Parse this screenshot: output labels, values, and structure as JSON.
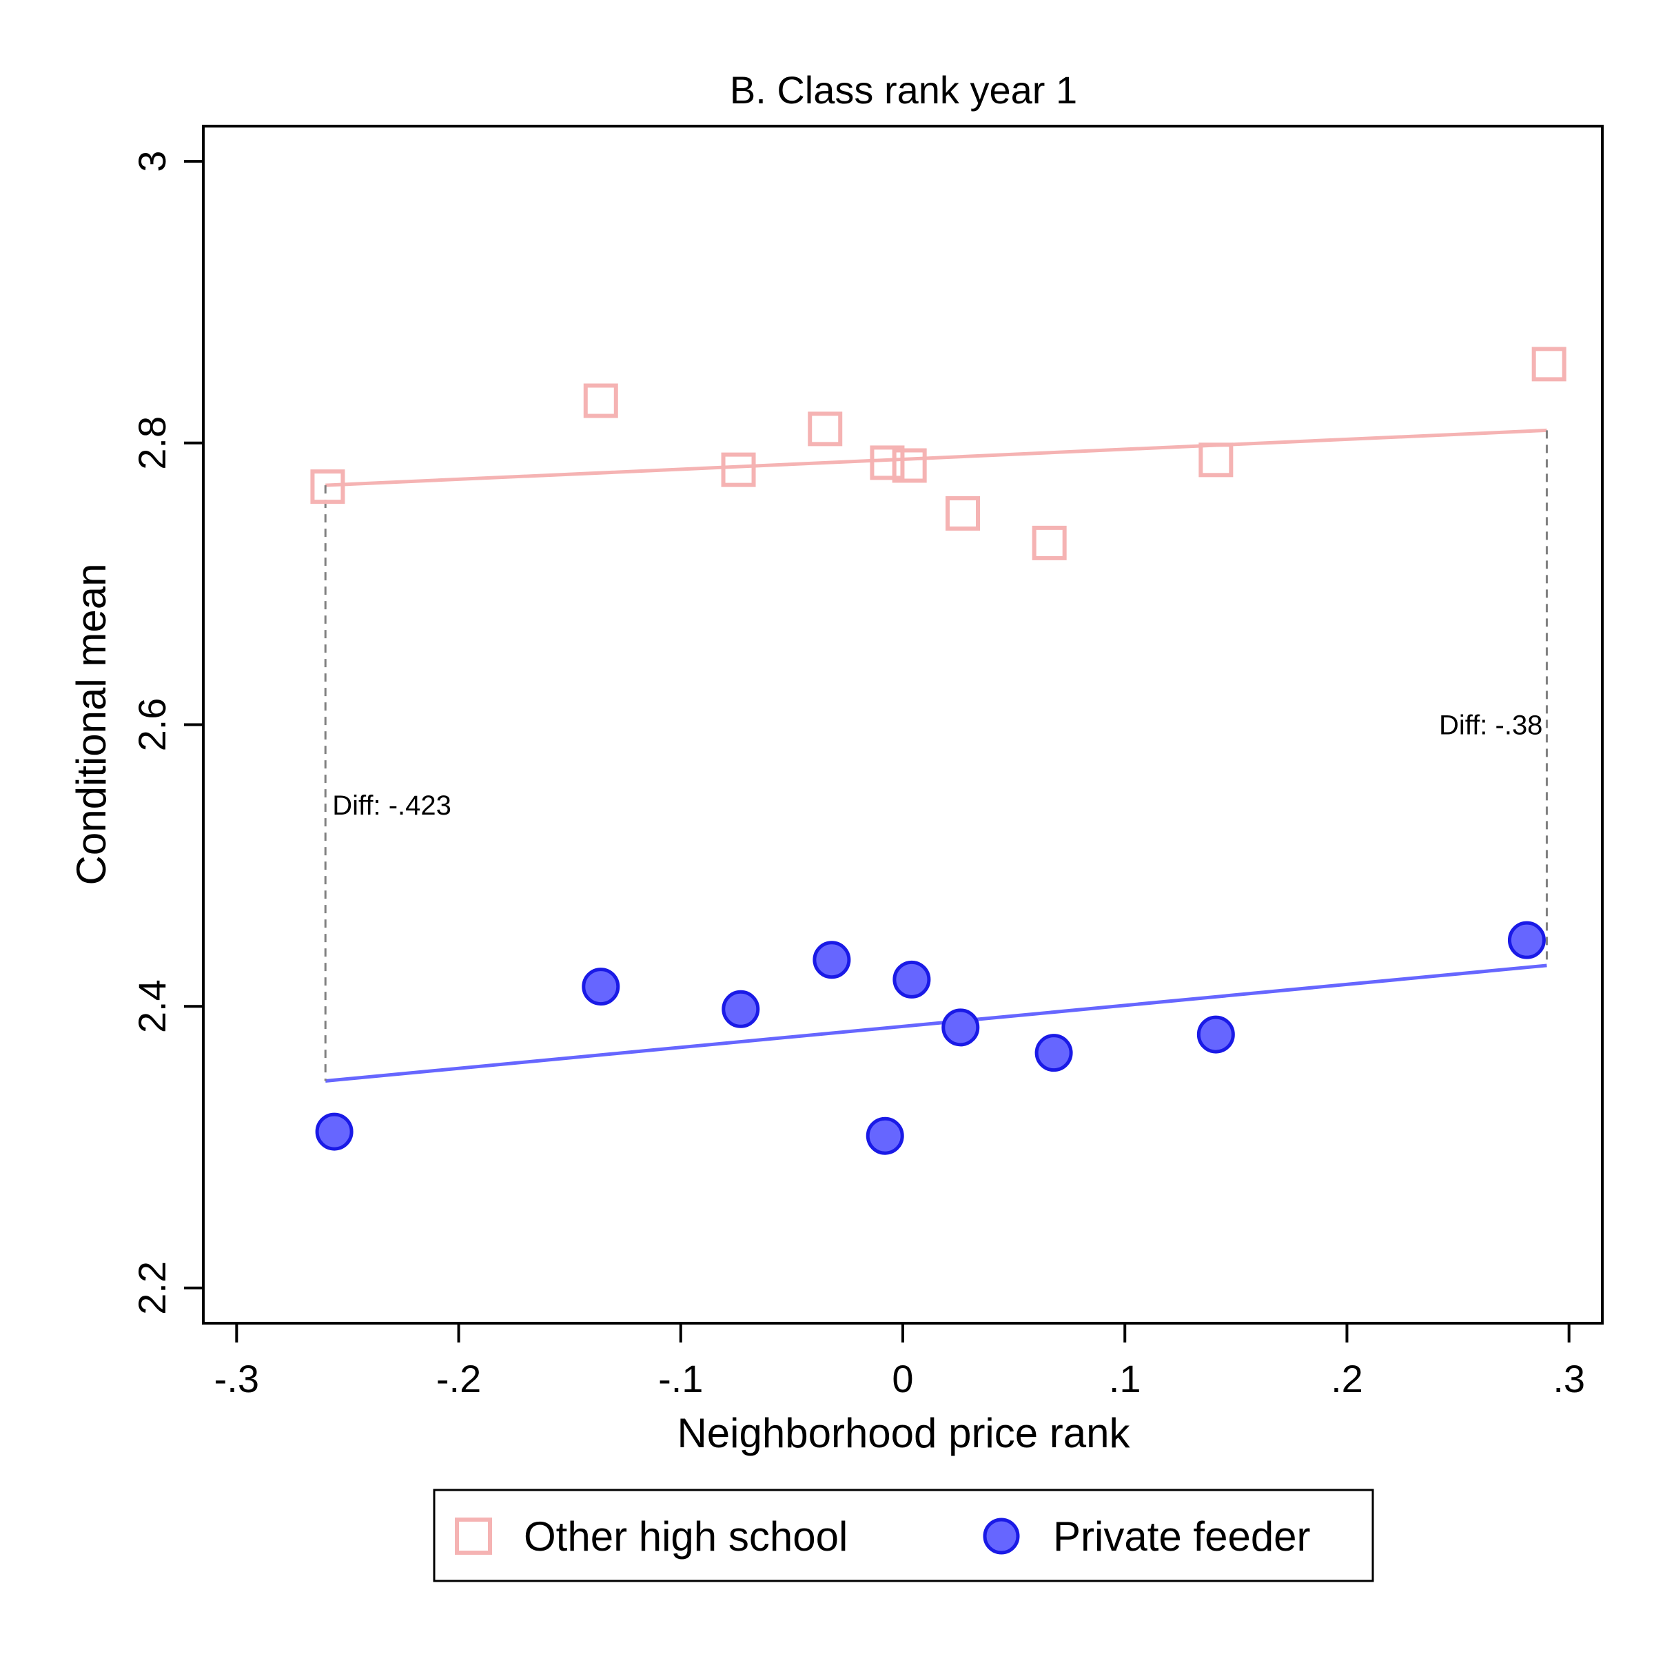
{
  "chart_data": {
    "type": "scatter",
    "title": "B. Class rank year 1",
    "xlabel": "Neighborhood price rank",
    "ylabel": "Conditional mean",
    "xlim": [
      -0.315,
      0.315
    ],
    "ylim": [
      2.175,
      3.025
    ],
    "x_ticks": [
      {
        "value": -0.3,
        "label": "-.3"
      },
      {
        "value": -0.2,
        "label": "-.2"
      },
      {
        "value": -0.1,
        "label": "-.1"
      },
      {
        "value": 0,
        "label": "0"
      },
      {
        "value": 0.1,
        "label": ".1"
      },
      {
        "value": 0.2,
        "label": ".2"
      },
      {
        "value": 0.3,
        "label": ".3"
      }
    ],
    "y_ticks": [
      {
        "value": 2.2,
        "label": "2.2"
      },
      {
        "value": 2.4,
        "label": "2.4"
      },
      {
        "value": 2.6,
        "label": "2.6"
      },
      {
        "value": 2.8,
        "label": "2.8"
      },
      {
        "value": 3.0,
        "label": "3"
      }
    ],
    "grid": false,
    "legend_position": "bottom",
    "series": [
      {
        "name": "Other high school",
        "marker": "hollow-square",
        "color": "#f5b3b3",
        "points": [
          {
            "x": -0.259,
            "y": 2.769
          },
          {
            "x": -0.136,
            "y": 2.83
          },
          {
            "x": -0.074,
            "y": 2.781
          },
          {
            "x": -0.035,
            "y": 2.81
          },
          {
            "x": -0.007,
            "y": 2.786
          },
          {
            "x": 0.003,
            "y": 2.784
          },
          {
            "x": 0.027,
            "y": 2.75
          },
          {
            "x": 0.066,
            "y": 2.729
          },
          {
            "x": 0.141,
            "y": 2.788
          },
          {
            "x": 0.291,
            "y": 2.856
          }
        ],
        "fit_line": {
          "x": [
            -0.26,
            0.29
          ],
          "y": [
            2.77,
            2.809
          ]
        }
      },
      {
        "name": "Private feeder",
        "marker": "filled-circle",
        "color": "#6666ff",
        "edge_color": "#1a1ae6",
        "points": [
          {
            "x": -0.256,
            "y": 2.311
          },
          {
            "x": -0.136,
            "y": 2.414
          },
          {
            "x": -0.073,
            "y": 2.398
          },
          {
            "x": -0.032,
            "y": 2.433
          },
          {
            "x": -0.008,
            "y": 2.308
          },
          {
            "x": 0.004,
            "y": 2.419
          },
          {
            "x": 0.026,
            "y": 2.385
          },
          {
            "x": 0.068,
            "y": 2.367
          },
          {
            "x": 0.141,
            "y": 2.38
          },
          {
            "x": 0.281,
            "y": 2.447
          }
        ],
        "fit_line": {
          "x": [
            -0.26,
            0.29
          ],
          "y": [
            2.347,
            2.429
          ]
        }
      }
    ],
    "annotations": [
      {
        "text": "Diff: -.423",
        "x": -0.26,
        "y_top": 2.77,
        "y_bottom": 2.347,
        "label_y": 2.543,
        "align": "start"
      },
      {
        "text": "Diff: -.38",
        "x": 0.29,
        "y_top": 2.809,
        "y_bottom": 2.429,
        "label_y": 2.6,
        "align": "end"
      }
    ]
  }
}
